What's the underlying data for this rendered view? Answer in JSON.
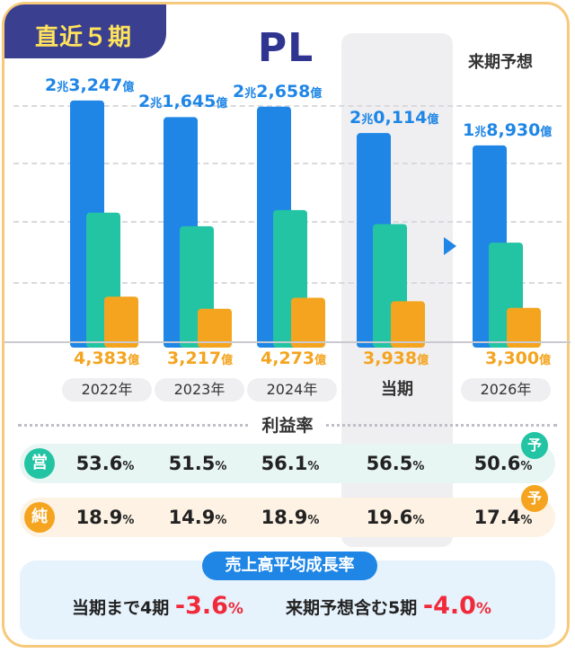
{
  "badge": "直近５期",
  "title": "PL",
  "forecast_heading": "来期予想",
  "chart_data": {
    "type": "bar",
    "title": "PL",
    "units": "億円",
    "categories": [
      "2022年",
      "2023年",
      "2024年",
      "当期",
      "2026年"
    ],
    "series": [
      {
        "name": "売上高",
        "color": "#1f86e6",
        "values": [
          23247,
          21645,
          22658,
          20114,
          18930
        ]
      },
      {
        "name": "営業利益",
        "color": "#22c4a3",
        "values": [
          12461,
          11154,
          12712,
          11364,
          9579
        ]
      },
      {
        "name": "純利益",
        "color": "#f4a41f",
        "values": [
          4383,
          3217,
          4273,
          3938,
          3300
        ]
      }
    ],
    "top_labels": [
      {
        "cho": "2",
        "cho_unit": "兆",
        "rest": "3,247",
        "unit": "億"
      },
      {
        "cho": "2",
        "cho_unit": "兆",
        "rest": "1,645",
        "unit": "億"
      },
      {
        "cho": "2",
        "cho_unit": "兆",
        "rest": "2,658",
        "unit": "億"
      },
      {
        "cho": "2",
        "cho_unit": "兆",
        "rest": "0,114",
        "unit": "億"
      },
      {
        "cho": "1",
        "cho_unit": "兆",
        "rest": "8,930",
        "unit": "億"
      }
    ],
    "net_labels": [
      {
        "value": "4,383",
        "unit": "億"
      },
      {
        "value": "3,217",
        "unit": "億"
      },
      {
        "value": "4,273",
        "unit": "億"
      },
      {
        "value": "3,938",
        "unit": "億"
      },
      {
        "value": "3,300",
        "unit": "億"
      }
    ],
    "ylim": [
      0,
      26000
    ]
  },
  "margins": {
    "heading": "利益率",
    "operating": {
      "label": "営",
      "values": [
        "53.6",
        "51.5",
        "56.1",
        "56.5",
        "50.6"
      ],
      "unit": "%",
      "forecast_mark": "予"
    },
    "net": {
      "label": "純",
      "values": [
        "18.9",
        "14.9",
        "18.9",
        "19.6",
        "17.4"
      ],
      "unit": "%",
      "forecast_mark": "予"
    }
  },
  "growth": {
    "heading": "売上高平均成長率",
    "item1_label": "当期まで4期",
    "item1_value": "-3.6",
    "item2_label": "来期予想含む5期",
    "item2_value": "-4.0",
    "unit": "%"
  },
  "colors": {
    "accent_navy": "#2f3490",
    "frame": "#f7c97a",
    "negative": "#f02a3a"
  }
}
